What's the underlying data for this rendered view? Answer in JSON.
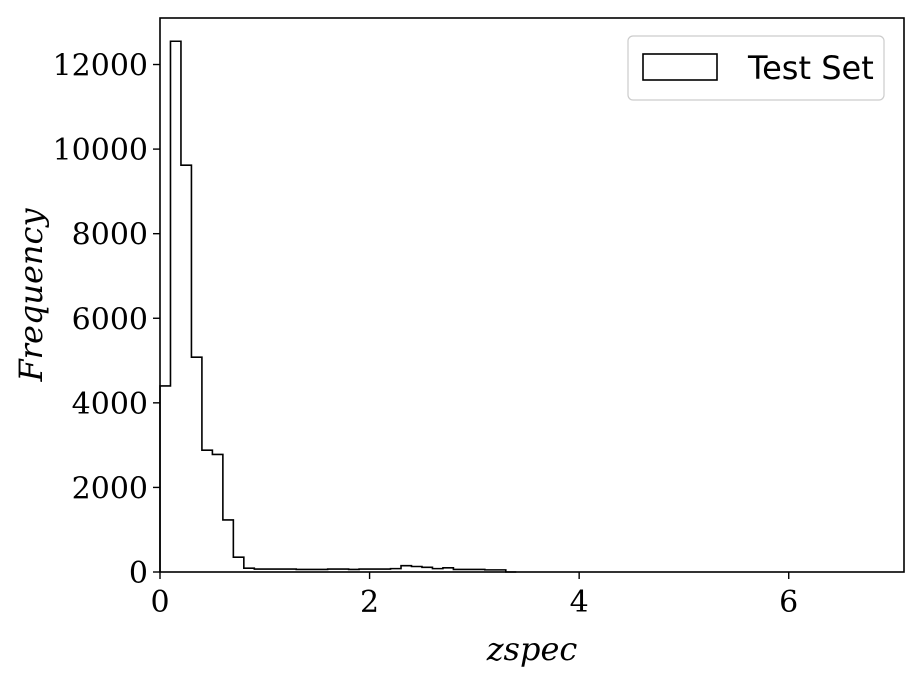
{
  "chart_data": {
    "type": "histogram",
    "xlabel": "zspec",
    "ylabel": "Frequency",
    "xlim": [
      0,
      7.1
    ],
    "ylim": [
      0,
      13100
    ],
    "x_ticks": [
      0,
      2,
      4,
      6
    ],
    "y_ticks": [
      0,
      2000,
      4000,
      6000,
      8000,
      10000,
      12000
    ],
    "bin_width": 0.1,
    "series": [
      {
        "name": "Test Set",
        "bins_start": 0.0,
        "values": [
          4400,
          12550,
          9620,
          5080,
          2880,
          2780,
          1230,
          350,
          90,
          70,
          70,
          70,
          70,
          60,
          60,
          60,
          70,
          70,
          60,
          70,
          70,
          70,
          80,
          150,
          130,
          110,
          80,
          100,
          60,
          60,
          60,
          50,
          50,
          0
        ]
      }
    ],
    "legend": {
      "position": "top-right"
    },
    "grid": false,
    "style": {
      "edge_color": "#000000",
      "fill": "none"
    }
  }
}
